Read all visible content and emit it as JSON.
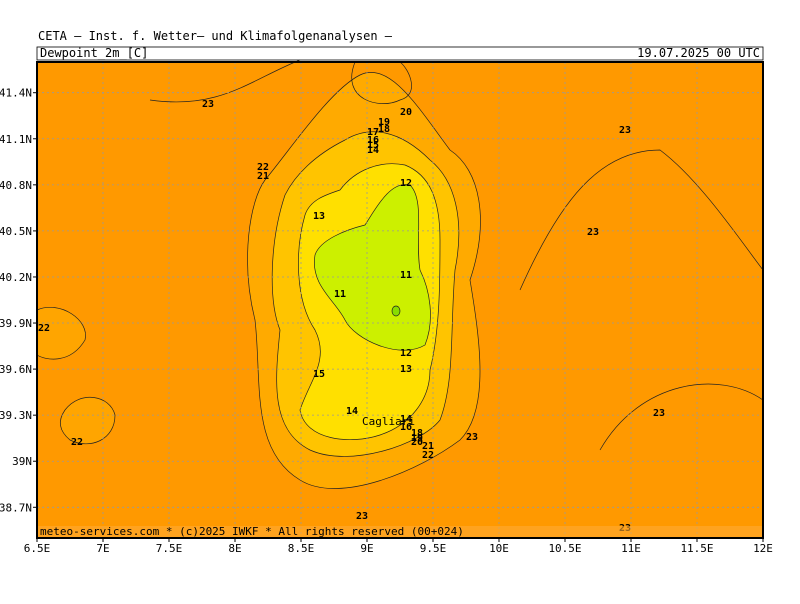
{
  "header": "CETA – Inst. f. Wetter– und Klimafolgenanalysen –",
  "map": {
    "title": "Dewpoint_2m_[C]",
    "valid_time": "19.07.2025 00 UTC",
    "xlim": [
      6.5,
      12
    ],
    "ylim": [
      38.5,
      41.6
    ],
    "xticks": [
      {
        "value": 6.5,
        "label": "6.5E"
      },
      {
        "value": 7,
        "label": "7E"
      },
      {
        "value": 7.5,
        "label": "7.5E"
      },
      {
        "value": 8,
        "label": "8E"
      },
      {
        "value": 8.5,
        "label": "8.5E"
      },
      {
        "value": 9,
        "label": "9E"
      },
      {
        "value": 9.5,
        "label": "9.5E"
      },
      {
        "value": 10,
        "label": "10E"
      },
      {
        "value": 10.5,
        "label": "10.5E"
      },
      {
        "value": 11,
        "label": "11E"
      },
      {
        "value": 11.5,
        "label": "11.5E"
      },
      {
        "value": 12,
        "label": "12E"
      }
    ],
    "yticks": [
      {
        "value": 38.7,
        "label": "38.7N"
      },
      {
        "value": 39,
        "label": "39N"
      },
      {
        "value": 39.3,
        "label": "39.3N"
      },
      {
        "value": 39.6,
        "label": "39.6N"
      },
      {
        "value": 39.9,
        "label": "39.9N"
      },
      {
        "value": 40.2,
        "label": "40.2N"
      },
      {
        "value": 40.5,
        "label": "40.5N"
      },
      {
        "value": 40.8,
        "label": "40.8N"
      },
      {
        "value": 41.1,
        "label": "41.1N"
      },
      {
        "value": 41.4,
        "label": "41.4N"
      }
    ],
    "contour_labels": [
      "23",
      "20",
      "19",
      "18",
      "17",
      "16",
      "15",
      "14",
      "22",
      "21",
      "12",
      "13",
      "23",
      "23",
      "11",
      "11",
      "22",
      "12",
      "13",
      "15",
      "14",
      "23",
      "14",
      "16",
      "18",
      "19",
      "20",
      "21",
      "22",
      "23",
      "22",
      "23",
      "23"
    ],
    "place_label": "Cagliari",
    "footer": "meteo-services.com * (c)2025 IWKF * All rights reserved (00+024)"
  }
}
